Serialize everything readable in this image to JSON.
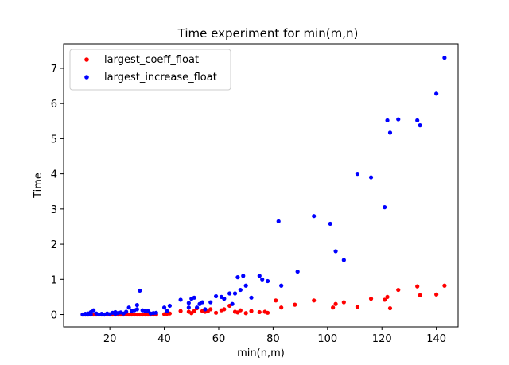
{
  "chart_data": {
    "type": "scatter",
    "title": "Time experiment for min(m,n)",
    "xlabel": "min(n,m)",
    "ylabel": "Time",
    "xlim": [
      3,
      148
    ],
    "ylim": [
      -0.35,
      7.7
    ],
    "xticks": [
      20,
      40,
      60,
      80,
      100,
      120,
      140
    ],
    "yticks": [
      0,
      1,
      2,
      3,
      4,
      5,
      6,
      7
    ],
    "legend_position": "top-left",
    "grid": false,
    "series": [
      {
        "name": "largest_coeff_float",
        "color": "#ff0000",
        "points": [
          [
            10,
            0
          ],
          [
            11,
            0
          ],
          [
            12,
            0
          ],
          [
            12,
            0.01
          ],
          [
            13,
            0
          ],
          [
            14,
            0
          ],
          [
            15,
            0
          ],
          [
            16,
            0
          ],
          [
            17,
            0
          ],
          [
            18,
            0
          ],
          [
            19,
            0
          ],
          [
            20,
            0
          ],
          [
            21,
            0
          ],
          [
            22,
            0
          ],
          [
            23,
            0
          ],
          [
            24,
            0
          ],
          [
            25,
            0
          ],
          [
            26,
            0
          ],
          [
            27,
            0
          ],
          [
            28,
            0
          ],
          [
            29,
            0
          ],
          [
            30,
            0
          ],
          [
            31,
            0
          ],
          [
            32,
            0
          ],
          [
            33,
            0
          ],
          [
            34,
            0
          ],
          [
            35,
            0
          ],
          [
            36,
            0
          ],
          [
            37,
            0
          ],
          [
            40,
            0.01
          ],
          [
            41,
            0.02
          ],
          [
            42,
            0.03
          ],
          [
            46,
            0.1
          ],
          [
            49,
            0.08
          ],
          [
            50,
            0.04
          ],
          [
            51,
            0.1
          ],
          [
            52,
            0.18
          ],
          [
            54,
            0.1
          ],
          [
            55,
            0.08
          ],
          [
            56,
            0.09
          ],
          [
            57,
            0.15
          ],
          [
            59,
            0.05
          ],
          [
            61,
            0.12
          ],
          [
            62,
            0.15
          ],
          [
            64,
            0.25
          ],
          [
            66,
            0.08
          ],
          [
            67,
            0.06
          ],
          [
            68,
            0.12
          ],
          [
            70,
            0.04
          ],
          [
            72,
            0.1
          ],
          [
            75,
            0.07
          ],
          [
            77,
            0.08
          ],
          [
            78,
            0.05
          ],
          [
            81,
            0.4
          ],
          [
            83,
            0.2
          ],
          [
            88,
            0.28
          ],
          [
            95,
            0.4
          ],
          [
            102,
            0.2
          ],
          [
            103,
            0.3
          ],
          [
            106,
            0.35
          ],
          [
            111,
            0.22
          ],
          [
            116,
            0.45
          ],
          [
            121,
            0.42
          ],
          [
            122,
            0.5
          ],
          [
            123,
            0.18
          ],
          [
            126,
            0.7
          ],
          [
            133,
            0.8
          ],
          [
            134,
            0.55
          ],
          [
            140,
            0.57
          ],
          [
            143,
            0.82
          ]
        ]
      },
      {
        "name": "largest_increase_float",
        "color": "#0000ff",
        "points": [
          [
            10,
            0
          ],
          [
            11,
            0
          ],
          [
            11,
            0.02
          ],
          [
            12,
            0
          ],
          [
            12,
            0.03
          ],
          [
            13,
            0
          ],
          [
            13,
            0.07
          ],
          [
            14,
            0.12
          ],
          [
            15,
            0.03
          ],
          [
            16,
            0
          ],
          [
            17,
            0.02
          ],
          [
            18,
            0
          ],
          [
            19,
            0.03
          ],
          [
            20,
            0.01
          ],
          [
            21,
            0.05
          ],
          [
            22,
            0.02
          ],
          [
            22,
            0.07
          ],
          [
            23,
            0.04
          ],
          [
            24,
            0.06
          ],
          [
            25,
            0.03
          ],
          [
            26,
            0.08
          ],
          [
            27,
            0.2
          ],
          [
            28,
            0.1
          ],
          [
            29,
            0.12
          ],
          [
            30,
            0.27
          ],
          [
            30,
            0.15
          ],
          [
            31,
            0.68
          ],
          [
            32,
            0.12
          ],
          [
            33,
            0.1
          ],
          [
            34,
            0.1
          ],
          [
            35,
            0.03
          ],
          [
            36,
            0.04
          ],
          [
            37,
            0.05
          ],
          [
            40,
            0.2
          ],
          [
            41,
            0.1
          ],
          [
            42,
            0.25
          ],
          [
            46,
            0.42
          ],
          [
            49,
            0.33
          ],
          [
            49,
            0.2
          ],
          [
            50,
            0.45
          ],
          [
            51,
            0.48
          ],
          [
            52,
            0.2
          ],
          [
            53,
            0.3
          ],
          [
            54,
            0.35
          ],
          [
            55,
            0.15
          ],
          [
            57,
            0.35
          ],
          [
            59,
            0.52
          ],
          [
            61,
            0.5
          ],
          [
            62,
            0.45
          ],
          [
            64,
            0.6
          ],
          [
            65,
            0.3
          ],
          [
            66,
            0.6
          ],
          [
            67,
            1.06
          ],
          [
            68,
            0.7
          ],
          [
            69,
            1.1
          ],
          [
            70,
            0.82
          ],
          [
            72,
            0.48
          ],
          [
            75,
            1.1
          ],
          [
            76,
            1.0
          ],
          [
            78,
            0.95
          ],
          [
            82,
            2.65
          ],
          [
            83,
            0.82
          ],
          [
            89,
            1.22
          ],
          [
            95,
            2.8
          ],
          [
            101,
            2.58
          ],
          [
            103,
            1.8
          ],
          [
            106,
            1.55
          ],
          [
            111,
            4.0
          ],
          [
            116,
            3.9
          ],
          [
            121,
            3.05
          ],
          [
            122,
            5.52
          ],
          [
            123,
            5.17
          ],
          [
            126,
            5.55
          ],
          [
            133,
            5.52
          ],
          [
            134,
            5.38
          ],
          [
            140,
            6.28
          ],
          [
            143,
            7.3
          ]
        ]
      }
    ]
  }
}
